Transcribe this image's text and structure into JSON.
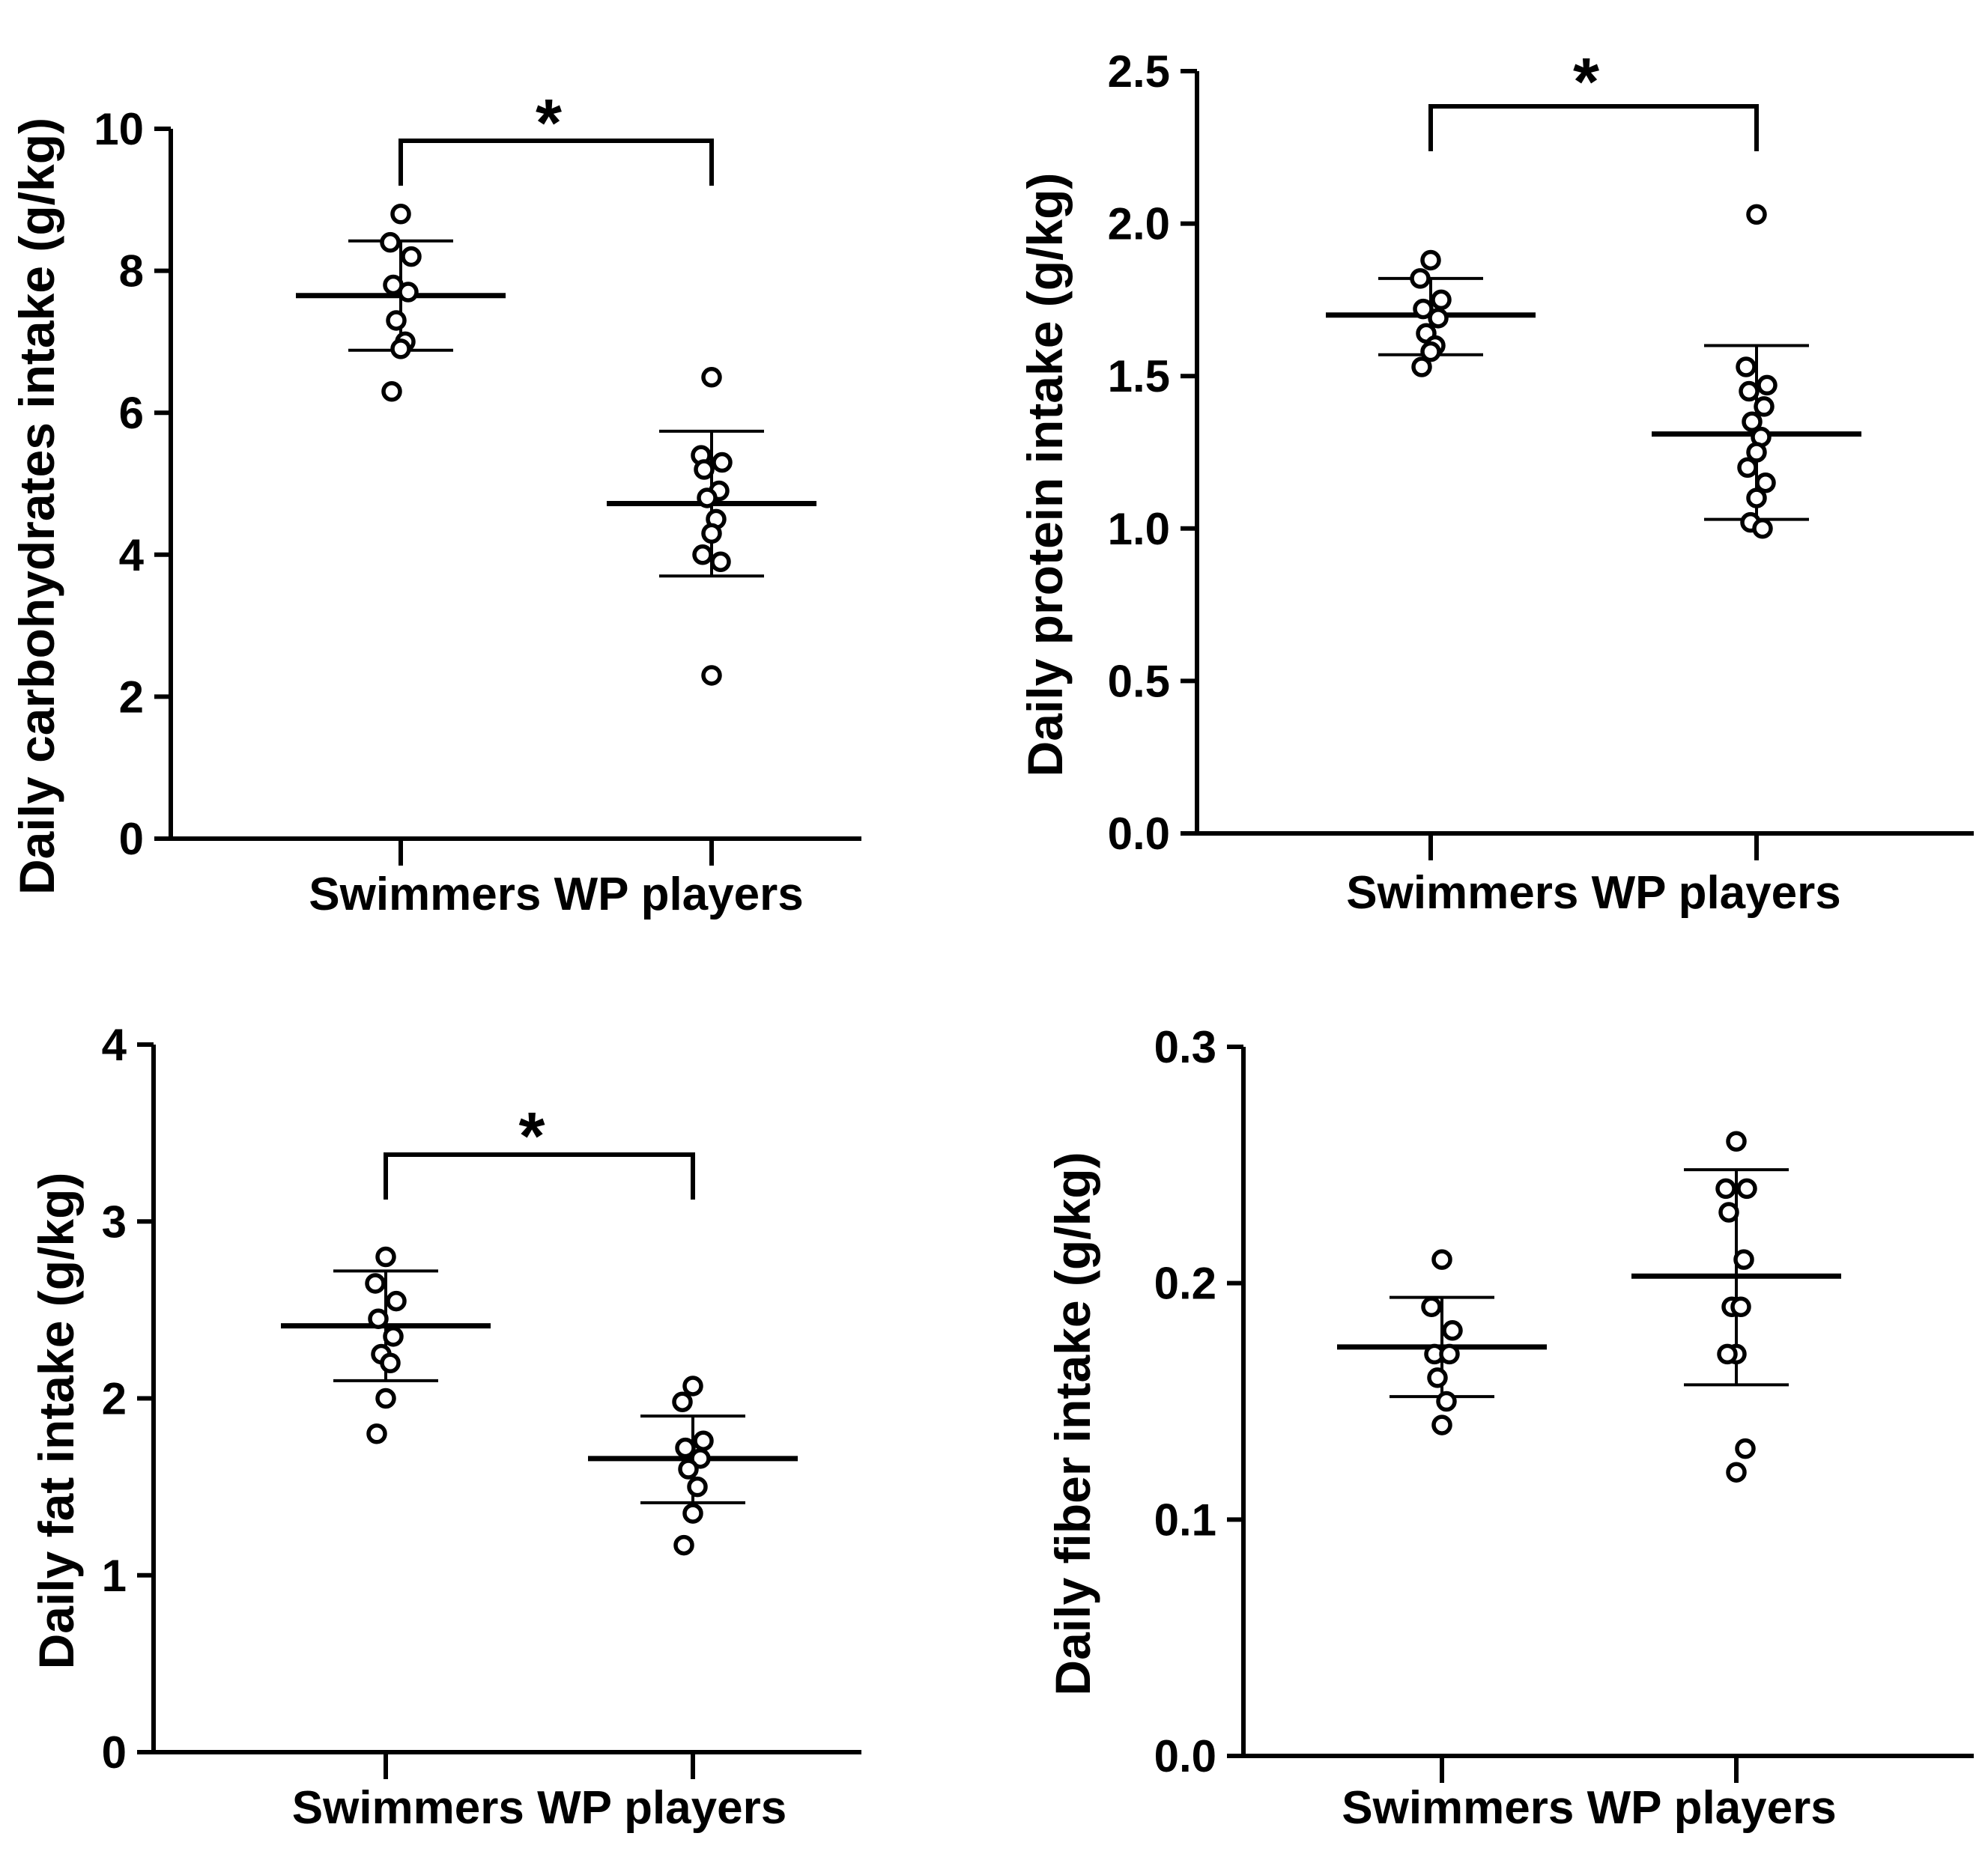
{
  "figure": {
    "colors": {
      "ink": "#000000",
      "background": "#ffffff"
    }
  },
  "chart_data": [
    {
      "type": "scatter",
      "panel": "top-left",
      "ylabel": "Daily carbohydrates intake (g/kg)",
      "categories": [
        "Swimmers",
        "WP players"
      ],
      "ylim": [
        0,
        10
      ],
      "yticks": [
        0,
        2,
        4,
        6,
        8,
        10
      ],
      "ytick_labels": [
        "0",
        "2",
        "4",
        "6",
        "8",
        "10"
      ],
      "series": [
        {
          "name": "Swimmers",
          "values": [
            8.8,
            8.4,
            8.2,
            7.8,
            7.7,
            7.3,
            7.0,
            6.9,
            6.3
          ],
          "mean": 7.65,
          "sd_low": 6.88,
          "sd_high": 8.42
        },
        {
          "name": "WP players",
          "values": [
            6.5,
            5.4,
            5.3,
            5.2,
            4.9,
            4.8,
            4.5,
            4.3,
            4.0,
            3.9,
            2.3
          ],
          "mean": 4.72,
          "sd_low": 3.7,
          "sd_high": 5.74
        }
      ],
      "significance": "*"
    },
    {
      "type": "scatter",
      "panel": "top-right",
      "ylabel": "Daily protein intake (g/kg)",
      "categories": [
        "Swimmers",
        "WP players"
      ],
      "ylim": [
        0,
        2.5
      ],
      "yticks": [
        0,
        0.5,
        1.0,
        1.5,
        2.0,
        2.5
      ],
      "ytick_labels": [
        "0.0",
        "0.5",
        "1.0",
        "1.5",
        "2.0",
        "2.5"
      ],
      "series": [
        {
          "name": "Swimmers",
          "values": [
            1.88,
            1.82,
            1.75,
            1.72,
            1.69,
            1.64,
            1.6,
            1.58,
            1.53
          ],
          "mean": 1.7,
          "sd_low": 1.57,
          "sd_high": 1.82
        },
        {
          "name": "WP players",
          "values": [
            2.03,
            1.53,
            1.47,
            1.45,
            1.4,
            1.35,
            1.3,
            1.25,
            1.2,
            1.15,
            1.1,
            1.02,
            1.0
          ],
          "mean": 1.31,
          "sd_low": 1.03,
          "sd_high": 1.6
        }
      ],
      "significance": "*"
    },
    {
      "type": "scatter",
      "panel": "bottom-left",
      "ylabel": "Daily fat intake (g/kg)",
      "categories": [
        "Swimmers",
        "WP players"
      ],
      "ylim": [
        0,
        4
      ],
      "yticks": [
        0,
        1,
        2,
        3,
        4
      ],
      "ytick_labels": [
        "0",
        "1",
        "2",
        "3",
        "4"
      ],
      "series": [
        {
          "name": "Swimmers",
          "values": [
            2.8,
            2.65,
            2.55,
            2.45,
            2.35,
            2.25,
            2.2,
            2.0,
            1.8
          ],
          "mean": 2.41,
          "sd_low": 2.1,
          "sd_high": 2.72
        },
        {
          "name": "WP players",
          "values": [
            2.07,
            1.98,
            1.76,
            1.72,
            1.66,
            1.6,
            1.5,
            1.35,
            1.17
          ],
          "mean": 1.66,
          "sd_low": 1.41,
          "sd_high": 1.9
        }
      ],
      "significance": "*"
    },
    {
      "type": "scatter",
      "panel": "bottom-right",
      "ylabel": "Daily fiber intake (g/kg)",
      "categories": [
        "Swimmers",
        "WP players"
      ],
      "ylim": [
        0,
        0.3
      ],
      "yticks": [
        0,
        0.1,
        0.2,
        0.3
      ],
      "ytick_labels": [
        "0.0",
        "0.1",
        "0.2",
        "0.3"
      ],
      "series": [
        {
          "name": "Swimmers",
          "values": [
            0.21,
            0.19,
            0.18,
            0.17,
            0.17,
            0.16,
            0.15,
            0.14
          ],
          "mean": 0.173,
          "sd_low": 0.152,
          "sd_high": 0.194
        },
        {
          "name": "WP players",
          "values": [
            0.26,
            0.24,
            0.24,
            0.23,
            0.21,
            0.19,
            0.19,
            0.17,
            0.17,
            0.13,
            0.12
          ],
          "mean": 0.203,
          "sd_low": 0.157,
          "sd_high": 0.248
        }
      ],
      "significance": ""
    }
  ]
}
